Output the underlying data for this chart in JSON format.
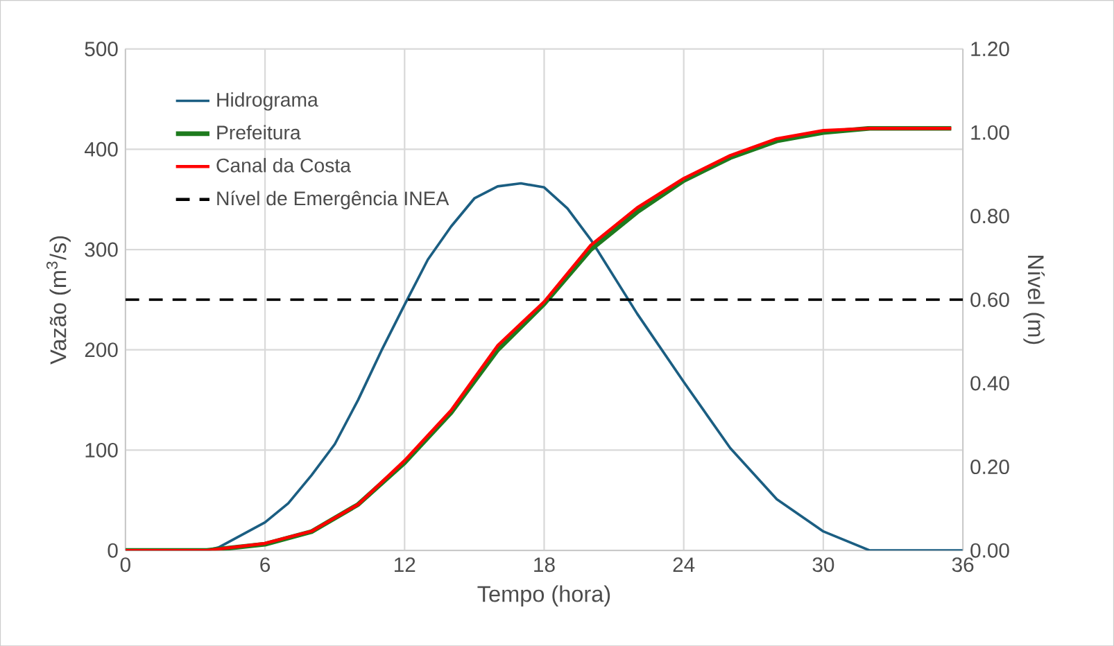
{
  "chart_data": {
    "type": "line",
    "xlabel": "Tempo (hora)",
    "ylabel": "Vazão (m$^{3}$/s)",
    "y2label": "Nível (m)",
    "xlim": [
      0,
      36
    ],
    "xticks": [
      0,
      6,
      12,
      18,
      24,
      30,
      36
    ],
    "ylim": [
      0,
      500
    ],
    "yticks": [
      0,
      100,
      200,
      300,
      400,
      500
    ],
    "y2lim": [
      0,
      1.2
    ],
    "y2ticks": [
      {
        "value": 0,
        "label": "0.00"
      },
      {
        "value": 0.2,
        "label": "0.20"
      },
      {
        "value": 0.4,
        "label": "0.40"
      },
      {
        "value": 0.6,
        "label": "0.60"
      },
      {
        "value": 0.8,
        "label": "0.80"
      },
      {
        "value": 1.0,
        "label": "1.00"
      },
      {
        "value": 1.2,
        "label": "1.20"
      }
    ],
    "grid": true,
    "legend": "top left",
    "marker": "none",
    "series": [
      {
        "name": "Hidrograma",
        "color": "#1b5e82",
        "x": [
          0,
          3.5,
          4,
          6,
          7,
          8,
          9,
          10,
          11,
          12,
          13,
          14,
          15,
          16,
          17,
          18,
          19,
          20,
          22,
          24,
          26,
          28,
          30,
          32,
          36
        ],
        "values": [
          0,
          0,
          3,
          28,
          47,
          75,
          106,
          150,
          199,
          245,
          290,
          323,
          351,
          363,
          366,
          362,
          341,
          310,
          236,
          168,
          102,
          51,
          19,
          0,
          0
        ]
      },
      {
        "name": "Prefeitura",
        "color": "#1e7b1e",
        "axis": "y2",
        "x": [
          0,
          3.5,
          6,
          8,
          10,
          12,
          14,
          16,
          18,
          20,
          22,
          24,
          26,
          28,
          30,
          32,
          35.5
        ],
        "values": [
          0,
          0,
          0.015,
          0.045,
          0.11,
          0.21,
          0.33,
          0.48,
          0.59,
          0.72,
          0.81,
          0.885,
          0.94,
          0.98,
          1.0,
          1.01,
          1.01
        ]
      },
      {
        "name": "Canal da Costa",
        "color": "#ff0000",
        "axis": "y2",
        "x": [
          0,
          3.5,
          6,
          8,
          10,
          12,
          14,
          16,
          18,
          20,
          22,
          24,
          26,
          28,
          30,
          32,
          35.5
        ],
        "values": [
          0,
          0,
          0.017,
          0.046,
          0.11,
          0.215,
          0.335,
          0.49,
          0.595,
          0.73,
          0.82,
          0.89,
          0.945,
          0.985,
          1.005,
          1.01,
          1.01
        ]
      },
      {
        "name": "Nível de Emergência INEA",
        "color": "#000000",
        "axis": "y2",
        "line_style": "dashed",
        "x": [
          0,
          36
        ],
        "values": [
          0.6,
          0.6
        ]
      }
    ]
  }
}
